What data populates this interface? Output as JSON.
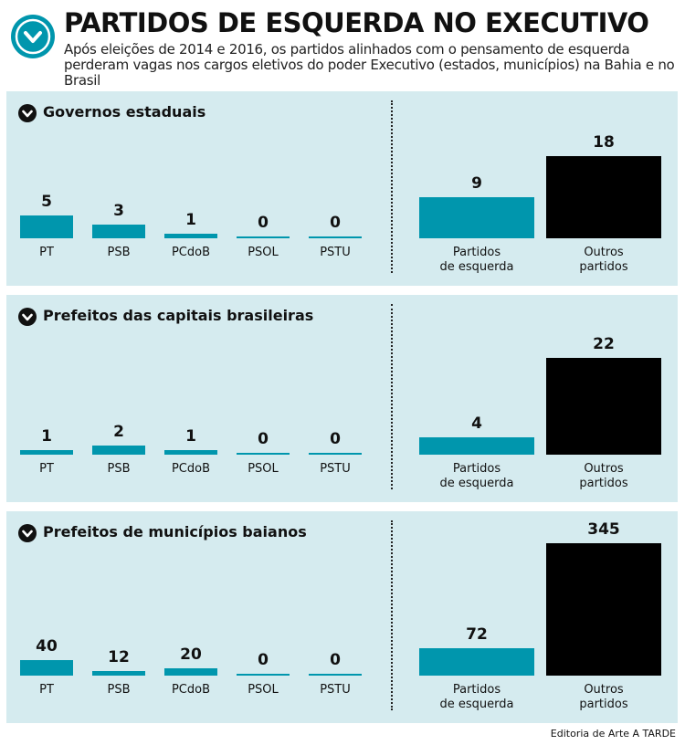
{
  "title": "PARTIDOS DE ESQUERDA NO EXECUTIVO",
  "subtitle": "Após eleições de 2014 e 2016, os partidos alinhados com o pensamento de esquerda perderam vagas nos cargos eletivos do poder Executivo (estados, municípios) na Bahia e no Brasil",
  "source": "Editoria de Arte A TARDE",
  "chart_data": [
    {
      "type": "bar",
      "title": "Governos estaduais",
      "categories": [
        "PT",
        "PSB",
        "PCdoB",
        "PSOL",
        "PSTU"
      ],
      "values": [
        5,
        3,
        1,
        0,
        0
      ],
      "color": "#0096ad",
      "ylim": [
        0,
        30
      ]
    },
    {
      "type": "bar",
      "categories": [
        "Partidos\nde esquerda",
        "Outros\npartidos"
      ],
      "values": [
        9,
        18
      ],
      "colors": [
        "#0096ad",
        "#000000"
      ],
      "ylim": [
        0,
        30
      ]
    },
    {
      "type": "bar",
      "title": "Prefeitos das capitais brasileiras",
      "categories": [
        "PT",
        "PSB",
        "PCdoB",
        "PSOL",
        "PSTU"
      ],
      "values": [
        1,
        2,
        1,
        0,
        0
      ],
      "color": "#0096ad",
      "ylim": [
        0,
        31
      ]
    },
    {
      "type": "bar",
      "categories": [
        "Partidos\nde esquerda",
        "Outros\npartidos"
      ],
      "values": [
        4,
        22
      ],
      "colors": [
        "#0096ad",
        "#000000"
      ],
      "ylim": [
        0,
        31
      ]
    },
    {
      "type": "bar",
      "title": "Prefeitos de municípios baianos",
      "categories": [
        "PT",
        "PSB",
        "PCdoB",
        "PSOL",
        "PSTU"
      ],
      "values": [
        40,
        12,
        20,
        0,
        0
      ],
      "color": "#0096ad",
      "ylim": [
        0,
        357
      ]
    },
    {
      "type": "bar",
      "categories": [
        "Partidos\nde esquerda",
        "Outros\npartidos"
      ],
      "values": [
        72,
        345
      ],
      "colors": [
        "#0096ad",
        "#000000"
      ],
      "ylim": [
        0,
        357
      ]
    }
  ]
}
